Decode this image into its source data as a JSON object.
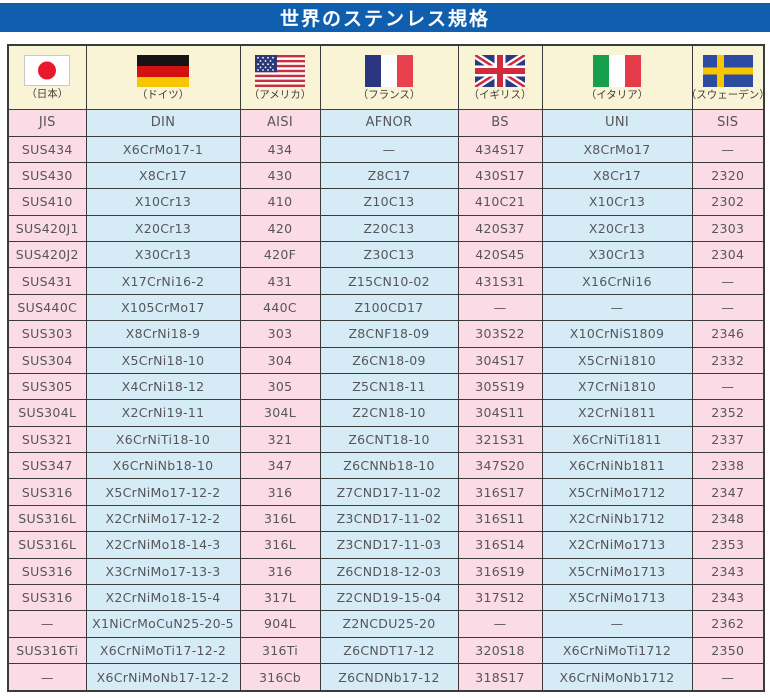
{
  "title": "世界のステンレス規格",
  "colors": {
    "title_bg": "#0f5fae",
    "title_text": "#ffffff",
    "column_pink": "#fbdce6",
    "column_blue": "#d5ecf6",
    "flag_row_cream": "#faf4d7",
    "border": "#3b3b3b",
    "text": "#56555a"
  },
  "columns": [
    {
      "id": "jis",
      "flag_icon": "japan-flag",
      "country": "（日本）",
      "standard": "JIS"
    },
    {
      "id": "din",
      "flag_icon": "germany-flag",
      "country": "（ドイツ）",
      "standard": "DIN"
    },
    {
      "id": "aisi",
      "flag_icon": "usa-flag",
      "country": "（アメリカ）",
      "standard": "AISI"
    },
    {
      "id": "afnor",
      "flag_icon": "france-flag",
      "country": "（フランス）",
      "standard": "AFNOR"
    },
    {
      "id": "bs",
      "flag_icon": "uk-flag",
      "country": "（イギリス）",
      "standard": "BS"
    },
    {
      "id": "uni",
      "flag_icon": "italy-flag",
      "country": "（イタリア）",
      "standard": "UNI"
    },
    {
      "id": "sis",
      "flag_icon": "sweden-flag",
      "country": "（スウェーデン）",
      "standard": "SIS"
    }
  ],
  "rows": [
    [
      "SUS434",
      "X6CrMo17-1",
      "434",
      "—",
      "434S17",
      "X8CrMo17",
      "—"
    ],
    [
      "SUS430",
      "X8Cr17",
      "430",
      "Z8C17",
      "430S17",
      "X8Cr17",
      "2320"
    ],
    [
      "SUS410",
      "X10Cr13",
      "410",
      "Z10C13",
      "410C21",
      "X10Cr13",
      "2302"
    ],
    [
      "SUS420J1",
      "X20Cr13",
      "420",
      "Z20C13",
      "420S37",
      "X20Cr13",
      "2303"
    ],
    [
      "SUS420J2",
      "X30Cr13",
      "420F",
      "Z30C13",
      "420S45",
      "X30Cr13",
      "2304"
    ],
    [
      "SUS431",
      "X17CrNi16-2",
      "431",
      "Z15CN10-02",
      "431S31",
      "X16CrNi16",
      "—"
    ],
    [
      "SUS440C",
      "X105CrMo17",
      "440C",
      "Z100CD17",
      "—",
      "—",
      "—"
    ],
    [
      "SUS303",
      "X8CrNi18-9",
      "303",
      "Z8CNF18-09",
      "303S22",
      "X10CrNiS1809",
      "2346"
    ],
    [
      "SUS304",
      "X5CrNi18-10",
      "304",
      "Z6CN18-09",
      "304S17",
      "X5CrNi1810",
      "2332"
    ],
    [
      "SUS305",
      "X4CrNi18-12",
      "305",
      "Z5CN18-11",
      "305S19",
      "X7CrNi1810",
      "—"
    ],
    [
      "SUS304L",
      "X2CrNi19-11",
      "304L",
      "Z2CN18-10",
      "304S11",
      "X2CrNi1811",
      "2352"
    ],
    [
      "SUS321",
      "X6CrNiTi18-10",
      "321",
      "Z6CNT18-10",
      "321S31",
      "X6CrNiTi1811",
      "2337"
    ],
    [
      "SUS347",
      "X6CrNiNb18-10",
      "347",
      "Z6CNNb18-10",
      "347S20",
      "X6CrNiNb1811",
      "2338"
    ],
    [
      "SUS316",
      "X5CrNiMo17-12-2",
      "316",
      "Z7CND17-11-02",
      "316S17",
      "X5CrNiMo1712",
      "2347"
    ],
    [
      "SUS316L",
      "X2CrNiMo17-12-2",
      "316L",
      "Z3CND17-11-02",
      "316S11",
      "X2CrNiNb1712",
      "2348"
    ],
    [
      "SUS316L",
      "X2CrNiMo18-14-3",
      "316L",
      "Z3CND17-11-03",
      "316S14",
      "X2CrNiMo1713",
      "2353"
    ],
    [
      "SUS316",
      "X3CrNiMo17-13-3",
      "316",
      "Z6CND18-12-03",
      "316S19",
      "X5CrNiMo1713",
      "2343"
    ],
    [
      "SUS316",
      "X2CrNiMo18-15-4",
      "317L",
      "Z2CND19-15-04",
      "317S12",
      "X5CrNiMo1713",
      "2343"
    ],
    [
      "—",
      "X1NiCrMoCuN25-20-5",
      "904L",
      "Z2NCDU25-20",
      "—",
      "—",
      "2362"
    ],
    [
      "SUS316Ti",
      "X6CrNiMoTi17-12-2",
      "316Ti",
      "Z6CNDT17-12",
      "320S18",
      "X6CrNiMoTi1712",
      "2350"
    ],
    [
      "—",
      "X6CrNiMoNb17-12-2",
      "316Cb",
      "Z6CNDNb17-12",
      "318S17",
      "X6CrNiMoNb1712",
      "—"
    ]
  ]
}
